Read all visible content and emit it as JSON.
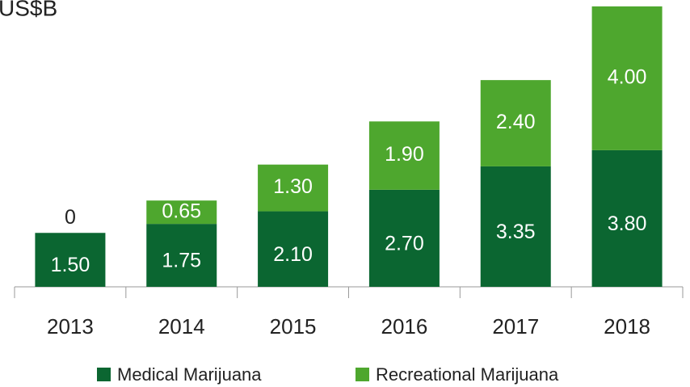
{
  "chart_data": {
    "type": "stacked_bar",
    "y_label": "US$B",
    "categories": [
      "2013",
      "2014",
      "2015",
      "2016",
      "2017",
      "2018"
    ],
    "series": [
      {
        "name": "Medical Marijuana",
        "color": "#0b6631",
        "values": [
          1.5,
          1.75,
          2.1,
          2.7,
          3.35,
          3.8
        ],
        "value_labels": [
          "1.50",
          "1.75",
          "2.10",
          "2.70",
          "3.35",
          "3.80"
        ]
      },
      {
        "name": "Recreational Marijuana",
        "color": "#4ea72e",
        "values": [
          0,
          0.65,
          1.3,
          1.9,
          2.4,
          4.0
        ],
        "value_labels": [
          "0",
          "0.65",
          "1.30",
          "1.90",
          "2.40",
          "4.00"
        ]
      }
    ],
    "ylim": [
      0,
      8
    ],
    "legend": "bottom"
  }
}
